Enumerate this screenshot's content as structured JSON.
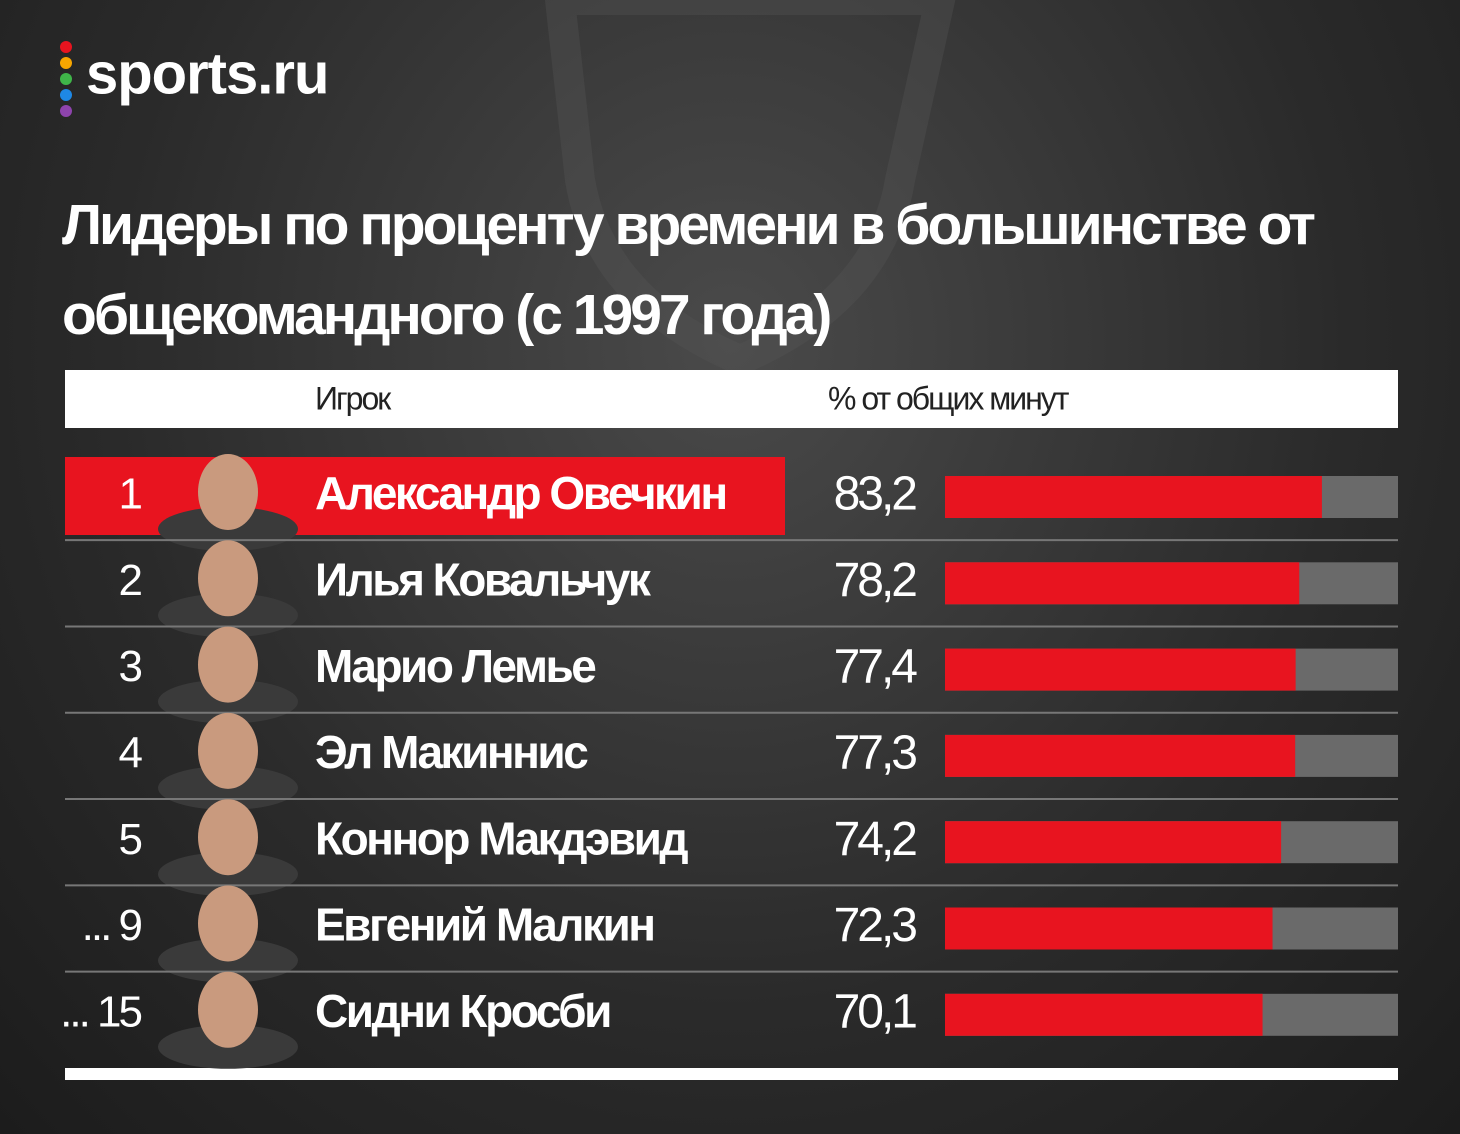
{
  "logo": "sports.ru",
  "chart_data": {
    "type": "bar",
    "orientation": "horizontal",
    "title": "Лидеры по проценту времени в большинстве от общекомандного (с 1997 года)",
    "header": {
      "player": "Игрок",
      "value": "% от общих минут"
    },
    "ranks": [
      "1",
      "2",
      "3",
      "4",
      "5",
      "... 9",
      "... 15"
    ],
    "categories": [
      "Александр Овечкин",
      "Илья Ковальчук",
      "Марио Лемье",
      "Эл Макиннис",
      "Коннор Макдэвид",
      "Евгений Малкин",
      "Сидни Кросби"
    ],
    "values": [
      83.2,
      78.2,
      77.4,
      77.3,
      74.2,
      72.3,
      70.1
    ],
    "value_labels": [
      "83,2",
      "78,2",
      "77,4",
      "77,3",
      "74,2",
      "72,3",
      "70,1"
    ],
    "color": "#e8141f",
    "track_color": "#6a6a6a",
    "highlight_color": "#e8141f",
    "highlight": [
      0
    ],
    "xlim": [
      0,
      100
    ]
  }
}
